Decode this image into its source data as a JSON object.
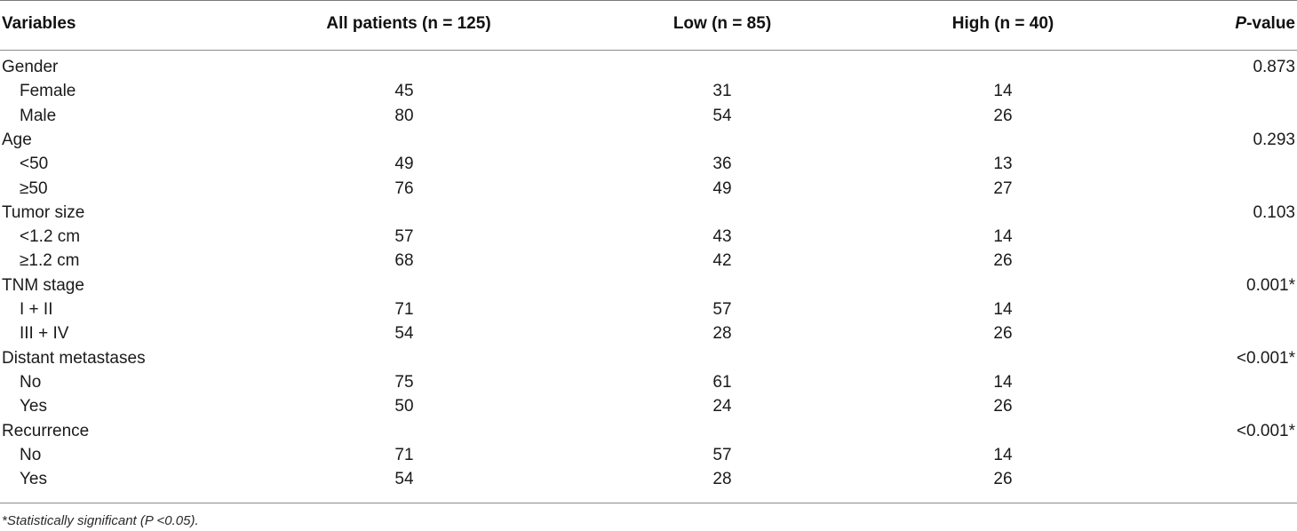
{
  "table": {
    "headers": {
      "variables": "Variables",
      "all_patients": "All patients (n = 125)",
      "low": "Low (n = 85)",
      "high": "High (n = 40)",
      "p_prefix": "P",
      "p_suffix": "-value"
    },
    "groups": [
      {
        "name": "Gender",
        "p": "0.873",
        "rows": [
          {
            "label": "Female",
            "all": "45",
            "low": "31",
            "high": "14"
          },
          {
            "label": "Male",
            "all": "80",
            "low": "54",
            "high": "26"
          }
        ]
      },
      {
        "name": "Age",
        "p": "0.293",
        "rows": [
          {
            "label": "<50",
            "all": "49",
            "low": "36",
            "high": "13"
          },
          {
            "label": "≥50",
            "all": "76",
            "low": "49",
            "high": "27"
          }
        ]
      },
      {
        "name": "Tumor size",
        "p": "0.103",
        "rows": [
          {
            "label": "<1.2 cm",
            "all": "57",
            "low": "43",
            "high": "14"
          },
          {
            "label": "≥1.2 cm",
            "all": "68",
            "low": "42",
            "high": "26"
          }
        ]
      },
      {
        "name": "TNM stage",
        "p": "0.001*",
        "rows": [
          {
            "label": "I + II",
            "all": "71",
            "low": "57",
            "high": "14"
          },
          {
            "label": "III + IV",
            "all": "54",
            "low": "28",
            "high": "26"
          }
        ]
      },
      {
        "name": "Distant metastases",
        "p": "<0.001*",
        "rows": [
          {
            "label": "No",
            "all": "75",
            "low": "61",
            "high": "14"
          },
          {
            "label": "Yes",
            "all": "50",
            "low": "24",
            "high": "26"
          }
        ]
      },
      {
        "name": "Recurrence",
        "p": "<0.001*",
        "rows": [
          {
            "label": "No",
            "all": "71",
            "low": "57",
            "high": "14"
          },
          {
            "label": "Yes",
            "all": "54",
            "low": "28",
            "high": "26"
          }
        ]
      }
    ]
  },
  "footnote": "*Statistically significant (P <0.05)."
}
